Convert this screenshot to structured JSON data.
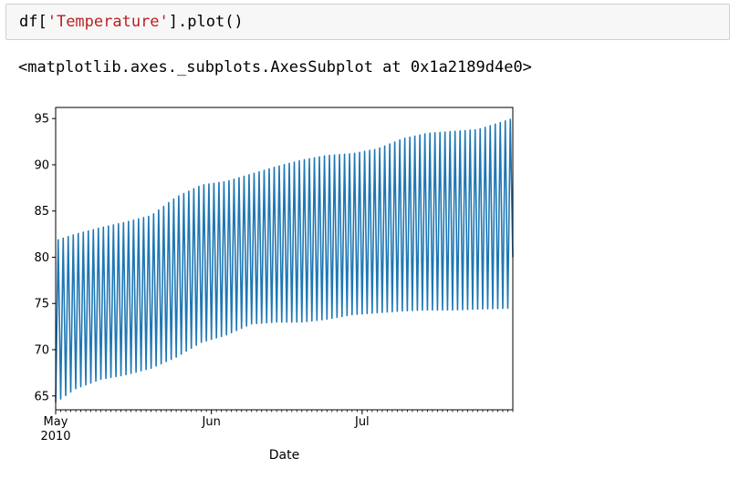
{
  "code_cell": {
    "prefix": "df[",
    "string_token": "'Temperature'",
    "suffix": "].plot()"
  },
  "output": {
    "repr_text": "<matplotlib.axes._subplots.AxesSubplot at 0x1a2189d4e0>"
  },
  "chart_data": {
    "type": "line",
    "title": "",
    "xlabel": "Date",
    "ylabel": "",
    "ylim": [
      63.5,
      96.2
    ],
    "xlim": [
      "2010-05-01",
      "2010-07-31"
    ],
    "yticks": [
      65,
      70,
      75,
      80,
      85,
      90,
      95
    ],
    "xticks_major": [
      {
        "date": "2010-05-01",
        "label": "May",
        "sublabel": "2010"
      },
      {
        "date": "2010-06-01",
        "label": "Jun",
        "sublabel": ""
      },
      {
        "date": "2010-07-01",
        "label": "Jul",
        "sublabel": ""
      }
    ],
    "grid": false,
    "colors": {
      "series": "#1f77b4"
    },
    "series": [
      {
        "name": "",
        "x": [
          "2010-05-01",
          "2010-05-05",
          "2010-05-10",
          "2010-05-15",
          "2010-05-20",
          "2010-05-25",
          "2010-05-30",
          "2010-06-04",
          "2010-06-09",
          "2010-06-14",
          "2010-06-19",
          "2010-06-24",
          "2010-06-29",
          "2010-07-04",
          "2010-07-09",
          "2010-07-14",
          "2010-07-19",
          "2010-07-24",
          "2010-07-31"
        ],
        "daily_max": [
          81.8,
          82.5,
          83.2,
          83.8,
          84.5,
          86.5,
          87.8,
          88.2,
          89.0,
          89.8,
          90.5,
          91.0,
          91.2,
          91.7,
          92.8,
          93.4,
          93.6,
          93.8,
          95.0
        ],
        "daily_min": [
          64.3,
          65.8,
          66.8,
          67.3,
          68.0,
          69.2,
          70.8,
          71.6,
          72.8,
          73.0,
          73.0,
          73.3,
          73.8,
          74.0,
          74.2,
          74.3,
          74.3,
          74.4,
          74.5
        ],
        "last_value": 80.0
      }
    ]
  }
}
